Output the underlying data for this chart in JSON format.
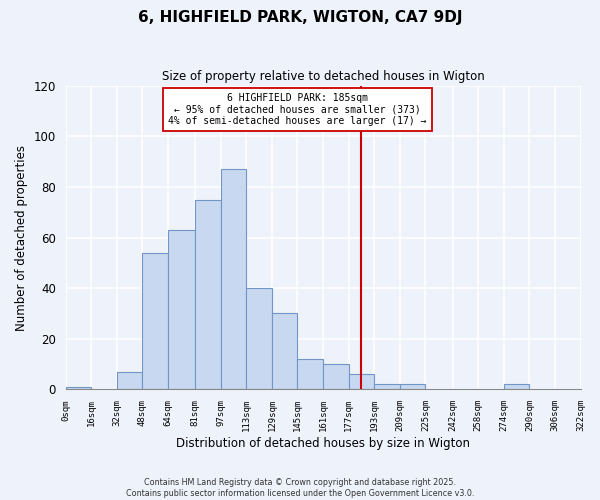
{
  "title": "6, HIGHFIELD PARK, WIGTON, CA7 9DJ",
  "subtitle": "Size of property relative to detached houses in Wigton",
  "xlabel": "Distribution of detached houses by size in Wigton",
  "ylabel": "Number of detached properties",
  "bin_labels": [
    "0sqm",
    "16sqm",
    "32sqm",
    "48sqm",
    "64sqm",
    "81sqm",
    "97sqm",
    "113sqm",
    "129sqm",
    "145sqm",
    "161sqm",
    "177sqm",
    "193sqm",
    "209sqm",
    "225sqm",
    "242sqm",
    "258sqm",
    "274sqm",
    "290sqm",
    "306sqm",
    "322sqm"
  ],
  "bar_values": [
    1,
    0,
    7,
    54,
    63,
    75,
    87,
    40,
    30,
    12,
    10,
    6,
    2,
    2,
    0,
    0,
    0,
    2,
    0,
    0
  ],
  "bar_color": "#c8d8f0",
  "bar_edge_color": "#7096c8",
  "ylim": [
    0,
    120
  ],
  "yticks": [
    0,
    20,
    40,
    60,
    80,
    100,
    120
  ],
  "vline_x": 185,
  "vline_color": "#cc0000",
  "annotation_title": "6 HIGHFIELD PARK: 185sqm",
  "annotation_line1": "← 95% of detached houses are smaller (373)",
  "annotation_line2": "4% of semi-detached houses are larger (17) →",
  "footnote1": "Contains HM Land Registry data © Crown copyright and database right 2025.",
  "footnote2": "Contains public sector information licensed under the Open Government Licence v3.0.",
  "background_color": "#eef2fa",
  "grid_color": "#ffffff",
  "bin_edges": [
    0,
    16,
    32,
    48,
    64,
    81,
    97,
    113,
    129,
    145,
    161,
    177,
    193,
    209,
    225,
    242,
    258,
    274,
    290,
    306,
    322
  ]
}
